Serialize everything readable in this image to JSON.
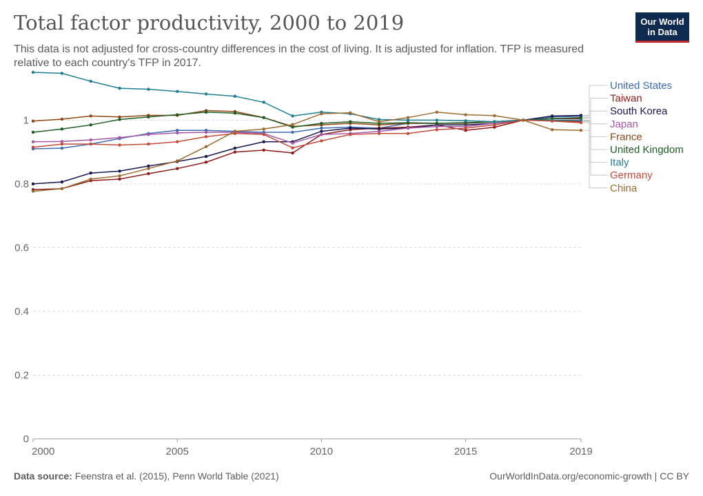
{
  "header": {
    "title": "Total factor productivity, 2000 to 2019",
    "subtitle": "This data is not adjusted for cross-country differences in the cost of living. It is adjusted for inflation. TFP is measured relative to each country's TFP in 2017.",
    "logo_line1": "Our World",
    "logo_line2": "in Data"
  },
  "footer": {
    "source_label": "Data source:",
    "source_text": " Feenstra et al. (2015), Penn World Table (2021)",
    "link_text": "OurWorldInData.org/economic-growth | CC BY"
  },
  "colors": {
    "grid": "#dddddd",
    "axis": "#999999",
    "tick_text": "#666666"
  },
  "chart_data": {
    "type": "line",
    "title": "Total factor productivity, 2000 to 2019",
    "xlim": [
      2000,
      2019
    ],
    "ylim": [
      0,
      1.15
    ],
    "yticks": [
      0,
      0.2,
      0.4,
      0.6,
      0.8,
      1
    ],
    "ytick_labels": [
      "0",
      "0.2",
      "0.4",
      "0.6",
      "0.8",
      "1"
    ],
    "xticks": [
      2000,
      2005,
      2010,
      2015,
      2019
    ],
    "xtick_labels": [
      "2000",
      "2005",
      "2010",
      "2015",
      "2019"
    ],
    "grid": true,
    "legend": "right",
    "x": [
      2000,
      2001,
      2002,
      2003,
      2004,
      2005,
      2006,
      2007,
      2008,
      2009,
      2010,
      2011,
      2012,
      2013,
      2014,
      2015,
      2016,
      2017,
      2018,
      2019
    ],
    "series": [
      {
        "name": "United States",
        "color": "#3d6ab0",
        "values": [
          0.91,
          0.912,
          0.925,
          0.942,
          0.958,
          0.968,
          0.968,
          0.965,
          0.962,
          0.962,
          0.975,
          0.978,
          0.975,
          0.99,
          0.99,
          0.992,
          0.995,
          1.0,
          1.01,
          1.012
        ]
      },
      {
        "name": "Taiwan",
        "color": "#8b1a1a",
        "values": [
          0.782,
          0.785,
          0.81,
          0.815,
          0.832,
          0.848,
          0.868,
          0.9,
          0.906,
          0.897,
          0.955,
          0.97,
          0.975,
          0.978,
          0.985,
          0.968,
          0.978,
          1.0,
          1.005,
          1.005
        ]
      },
      {
        "name": "South Korea",
        "color": "#18174f",
        "values": [
          0.8,
          0.806,
          0.834,
          0.84,
          0.856,
          0.87,
          0.886,
          0.912,
          0.932,
          0.932,
          0.965,
          0.975,
          0.972,
          0.975,
          0.985,
          0.985,
          0.99,
          1.0,
          1.013,
          1.015
        ]
      },
      {
        "name": "Japan",
        "color": "#a457a6",
        "values": [
          0.932,
          0.933,
          0.938,
          0.945,
          0.955,
          0.96,
          0.962,
          0.962,
          0.958,
          0.928,
          0.955,
          0.958,
          0.965,
          0.975,
          0.98,
          0.98,
          0.99,
          1.0,
          0.998,
          0.998
        ]
      },
      {
        "name": "France",
        "color": "#8c4513",
        "values": [
          0.997,
          1.003,
          1.013,
          1.01,
          1.015,
          1.015,
          1.03,
          1.027,
          1.008,
          0.98,
          0.985,
          0.99,
          0.985,
          0.99,
          0.99,
          0.99,
          0.995,
          1.0,
          0.998,
          0.995
        ]
      },
      {
        "name": "United Kingdom",
        "color": "#1f5c24",
        "values": [
          0.962,
          0.972,
          0.985,
          1.002,
          1.01,
          1.017,
          1.025,
          1.022,
          1.008,
          0.978,
          0.99,
          0.995,
          0.99,
          0.992,
          0.99,
          0.992,
          0.995,
          1.0,
          1.005,
          1.008
        ]
      },
      {
        "name": "Italy",
        "color": "#1e7e8f",
        "values": [
          1.15,
          1.147,
          1.122,
          1.1,
          1.097,
          1.09,
          1.082,
          1.075,
          1.056,
          1.013,
          1.025,
          1.02,
          1.002,
          1.0,
          1.0,
          0.998,
          0.995,
          1.0,
          1.0,
          1.0
        ]
      },
      {
        "name": "Germany",
        "color": "#c24a3a",
        "values": [
          0.915,
          0.925,
          0.925,
          0.922,
          0.925,
          0.932,
          0.948,
          0.958,
          0.955,
          0.913,
          0.935,
          0.955,
          0.958,
          0.958,
          0.97,
          0.975,
          0.985,
          1.0,
          0.997,
          0.992
        ]
      },
      {
        "name": "China",
        "color": "#9a6a2f",
        "values": [
          0.777,
          0.785,
          0.815,
          0.825,
          0.848,
          0.872,
          0.917,
          0.965,
          0.972,
          0.986,
          1.02,
          1.023,
          0.995,
          1.008,
          1.025,
          1.017,
          1.014,
          1.0,
          0.97,
          0.968
        ]
      }
    ]
  }
}
